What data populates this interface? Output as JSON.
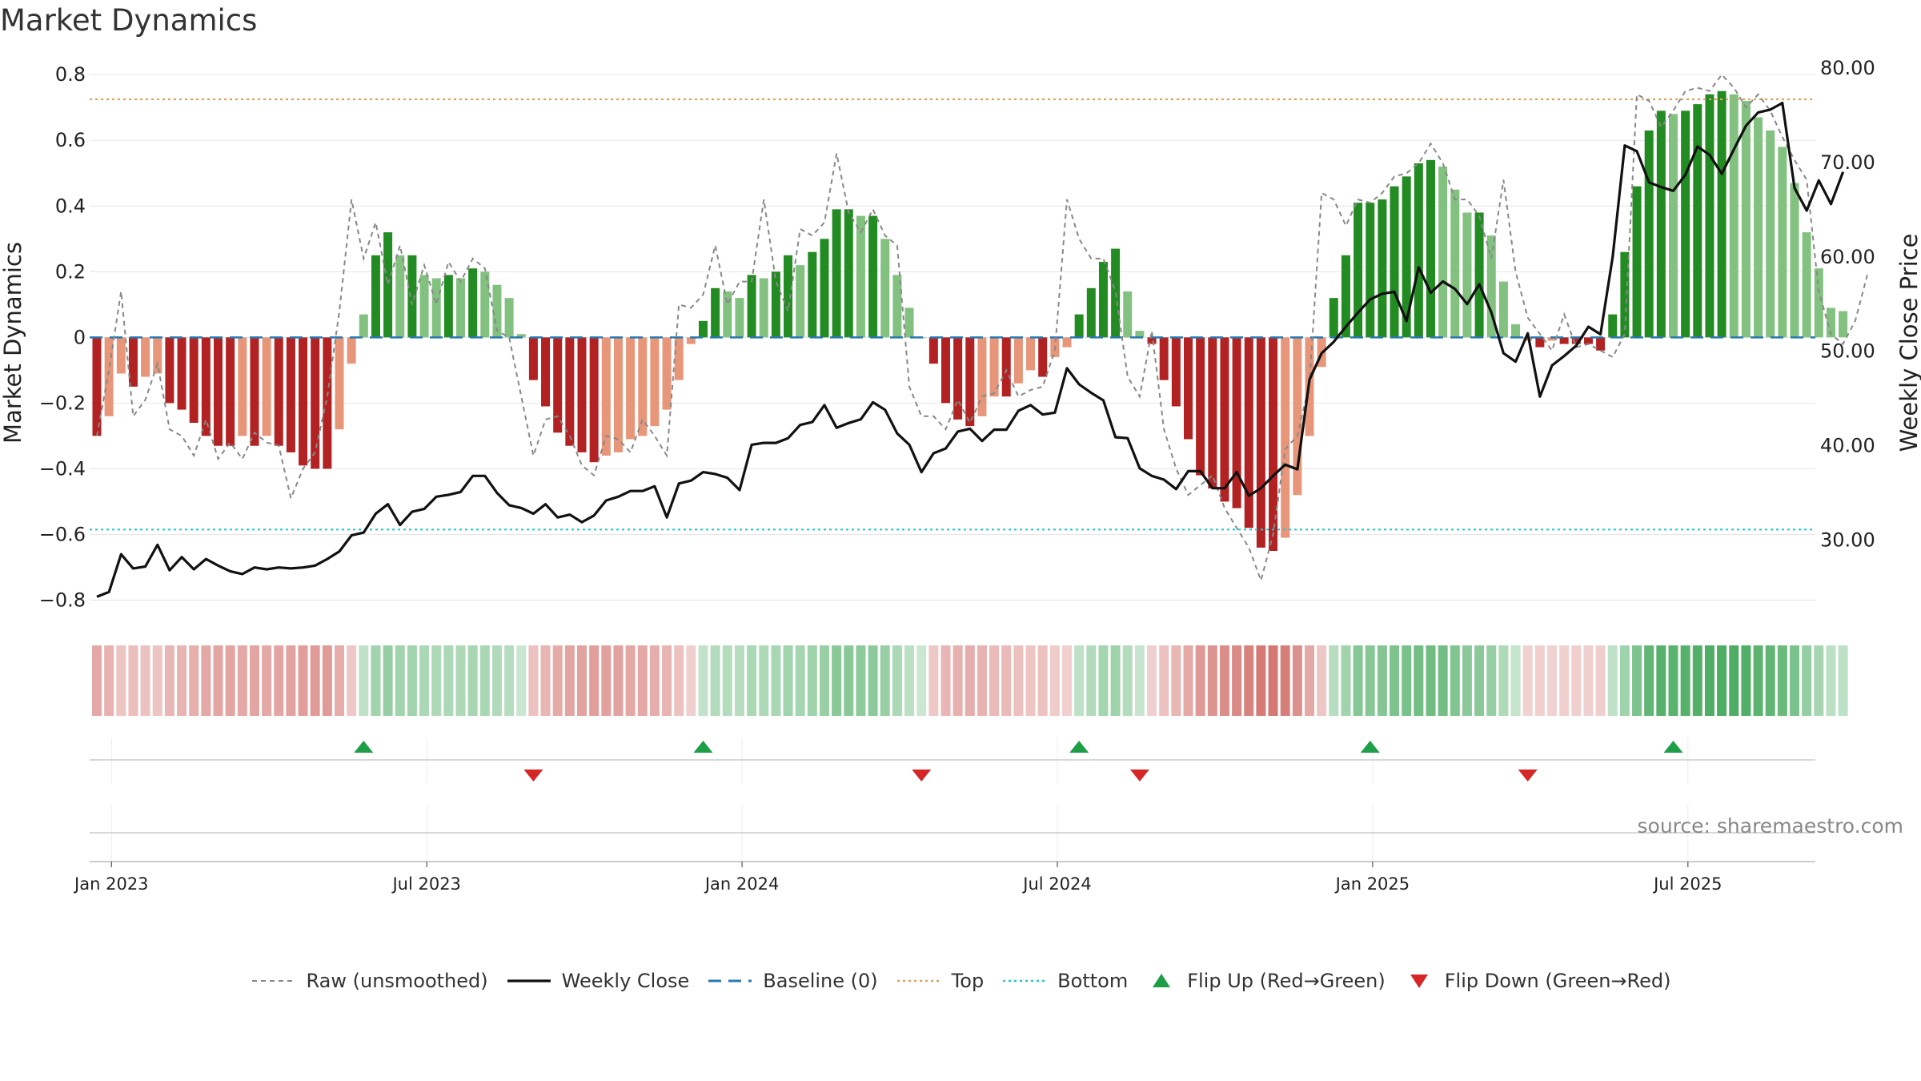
{
  "chart_data": {
    "type": "bar",
    "title": "Market Dynamics",
    "ylabel": "Market Dynamics",
    "y2label": "Weekly Close Price",
    "ylim": [
      -0.85,
      0.82
    ],
    "y2lim": [
      21.9,
      80.0
    ],
    "y_ticks": [
      "0.8",
      "0.6",
      "0.4",
      "0.2",
      "0",
      "−0.2",
      "−0.4",
      "−0.6",
      "−0.8"
    ],
    "y_tick_values": [
      0.8,
      0.6,
      0.4,
      0.2,
      0,
      -0.2,
      -0.4,
      -0.6,
      -0.8
    ],
    "y2_ticks": [
      "80.00",
      "70.00",
      "60.00",
      "50.00",
      "40.00",
      "30.00"
    ],
    "y2_tick_values": [
      80,
      70,
      60,
      50,
      40,
      30
    ],
    "x_ticks": [
      "Jan 2023",
      "Jul 2023",
      "Jan 2024",
      "Jul 2024",
      "Jan 2025",
      "Jul 2025"
    ],
    "x_tick_weeks": [
      2,
      28,
      54,
      80,
      106,
      132
    ],
    "top_line": 0.725,
    "bottom_line": -0.585,
    "baseline": 0,
    "source": "source: sharemaestro.com",
    "weeks": 145,
    "smoothed": [
      -0.3,
      -0.24,
      -0.11,
      -0.15,
      -0.12,
      -0.11,
      -0.2,
      -0.22,
      -0.26,
      -0.3,
      -0.33,
      -0.33,
      -0.3,
      -0.33,
      -0.3,
      -0.33,
      -0.35,
      -0.39,
      -0.4,
      -0.4,
      -0.28,
      -0.08,
      0.07,
      0.25,
      0.32,
      0.25,
      0.25,
      0.19,
      0.18,
      0.19,
      0.18,
      0.21,
      0.2,
      0.16,
      0.12,
      0.01,
      -0.13,
      -0.21,
      -0.29,
      -0.33,
      -0.35,
      -0.38,
      -0.36,
      -0.35,
      -0.31,
      -0.3,
      -0.27,
      -0.22,
      -0.13,
      -0.02,
      0.05,
      0.15,
      0.14,
      0.12,
      0.19,
      0.18,
      0.2,
      0.25,
      0.22,
      0.26,
      0.3,
      0.39,
      0.39,
      0.37,
      0.37,
      0.3,
      0.19,
      0.09,
      0.0,
      -0.08,
      -0.2,
      -0.25,
      -0.27,
      -0.24,
      -0.18,
      -0.18,
      -0.14,
      -0.1,
      -0.12,
      -0.06,
      -0.03,
      0.07,
      0.15,
      0.23,
      0.27,
      0.14,
      0.02,
      -0.02,
      -0.13,
      -0.21,
      -0.31,
      -0.42,
      -0.46,
      -0.5,
      -0.52,
      -0.58,
      -0.64,
      -0.65,
      -0.61,
      -0.48,
      -0.3,
      -0.09,
      0.12,
      0.25,
      0.41,
      0.41,
      0.42,
      0.46,
      0.49,
      0.53,
      0.54,
      0.52,
      0.45,
      0.38,
      0.38,
      0.31,
      0.17,
      0.04,
      -0.01,
      -0.03,
      -0.01,
      -0.02,
      -0.02,
      -0.02,
      -0.04,
      0.07,
      0.26,
      0.46,
      0.63,
      0.69,
      0.68,
      0.69,
      0.71,
      0.74,
      0.75,
      0.74,
      0.72,
      0.67,
      0.63,
      0.58,
      0.47,
      0.32,
      0.21,
      0.09,
      0.08
    ],
    "raw": [
      -0.3,
      -0.1,
      0.14,
      -0.24,
      -0.19,
      -0.08,
      -0.28,
      -0.3,
      -0.36,
      -0.25,
      -0.37,
      -0.32,
      -0.37,
      -0.29,
      -0.32,
      -0.33,
      -0.49,
      -0.4,
      -0.35,
      -0.18,
      0.08,
      0.42,
      0.24,
      0.35,
      0.16,
      0.28,
      0.1,
      0.22,
      0.1,
      0.23,
      0.17,
      0.24,
      0.21,
      0.02,
      0.0,
      -0.18,
      -0.36,
      -0.25,
      -0.24,
      -0.3,
      -0.39,
      -0.42,
      -0.3,
      -0.31,
      -0.35,
      -0.25,
      -0.3,
      -0.36,
      0.1,
      0.09,
      0.13,
      0.28,
      0.1,
      0.17,
      0.17,
      0.42,
      0.17,
      0.08,
      0.33,
      0.31,
      0.35,
      0.56,
      0.38,
      0.32,
      0.39,
      0.31,
      0.28,
      -0.15,
      -0.24,
      -0.24,
      -0.28,
      -0.19,
      -0.26,
      -0.18,
      -0.17,
      -0.1,
      -0.18,
      -0.16,
      -0.15,
      -0.04,
      0.42,
      0.3,
      0.24,
      0.24,
      0.14,
      -0.12,
      -0.18,
      0.02,
      -0.28,
      -0.4,
      -0.48,
      -0.45,
      -0.42,
      -0.52,
      -0.58,
      -0.64,
      -0.74,
      -0.6,
      -0.34,
      -0.3,
      -0.14,
      0.44,
      0.42,
      0.34,
      0.42,
      0.41,
      0.44,
      0.49,
      0.5,
      0.53,
      0.59,
      0.53,
      0.42,
      0.42,
      0.37,
      0.24,
      0.48,
      0.2,
      0.06,
      0.01,
      -0.04,
      0.07,
      -0.03,
      -0.02,
      -0.04,
      -0.06,
      0.01,
      0.74,
      0.72,
      0.64,
      0.69,
      0.75,
      0.76,
      0.75,
      0.8,
      0.76,
      0.7,
      0.74,
      0.69,
      0.61,
      0.54,
      0.48,
      0.14,
      0.01,
      -0.02,
      0.05,
      0.19
    ],
    "close": [
      24.0,
      24.5,
      28.5,
      27.0,
      27.2,
      29.5,
      26.8,
      28.2,
      26.9,
      28.0,
      27.3,
      26.7,
      26.4,
      27.1,
      26.9,
      27.1,
      27.0,
      27.1,
      27.3,
      28.0,
      28.8,
      30.5,
      30.8,
      32.8,
      33.8,
      31.6,
      33.0,
      33.3,
      34.6,
      34.8,
      35.1,
      36.8,
      36.8,
      35.0,
      33.7,
      33.4,
      32.8,
      33.8,
      32.4,
      32.7,
      31.9,
      32.6,
      34.2,
      34.6,
      35.2,
      35.2,
      35.7,
      32.4,
      36.0,
      36.3,
      37.2,
      37.0,
      36.6,
      35.3,
      40.1,
      40.3,
      40.3,
      40.8,
      42.2,
      42.5,
      44.3,
      41.9,
      42.4,
      42.8,
      44.6,
      43.8,
      41.3,
      40.1,
      37.2,
      39.2,
      39.7,
      41.5,
      41.8,
      40.5,
      41.7,
      41.7,
      43.7,
      44.3,
      43.3,
      43.5,
      48.2,
      46.5,
      45.6,
      44.8,
      40.9,
      40.8,
      37.6,
      36.8,
      36.4,
      35.4,
      37.3,
      37.3,
      35.5,
      35.5,
      37.2,
      34.7,
      35.5,
      36.8,
      38.0,
      37.5,
      47.0,
      49.8,
      51.0,
      52.6,
      54.1,
      55.5,
      56.1,
      56.3,
      53.2,
      58.9,
      56.2,
      57.4,
      56.6,
      55.0,
      57.1,
      54.1,
      49.8,
      48.9,
      51.9,
      45.2,
      48.5,
      49.5,
      50.6,
      52.6,
      51.8,
      60.0,
      71.8,
      71.2,
      67.9,
      67.4,
      67.0,
      68.7,
      71.7,
      70.8,
      68.8,
      71.4,
      73.9,
      75.3,
      75.6,
      76.3,
      67.3,
      64.9,
      68.1,
      65.6,
      69.0
    ]
  },
  "regime_strip": {
    "label": "regime-color-strip"
  },
  "flip_markers": {
    "up_weeks": [
      22,
      50,
      81,
      105,
      130
    ],
    "down_weeks": [
      36,
      68,
      86,
      118
    ]
  },
  "legend": {
    "raw": "Raw (unsmoothed)",
    "close": "Weekly Close",
    "baseline": "Baseline (0)",
    "top": "Top",
    "bottom": "Bottom",
    "flip_up": "Flip Up (Red→Green)",
    "flip_down": "Flip Down (Green→Red)"
  },
  "colors": {
    "green_strong": "#228b22",
    "green_light": "#82c17f",
    "red_strong": "#b22222",
    "red_light": "#e8967a",
    "raw_line": "#888888",
    "close_line": "#111111",
    "baseline": "#2a78b0",
    "top": "#e0a060",
    "bottom": "#2ac6d0",
    "flip_up": "#1e9e46",
    "flip_down": "#d62728"
  }
}
